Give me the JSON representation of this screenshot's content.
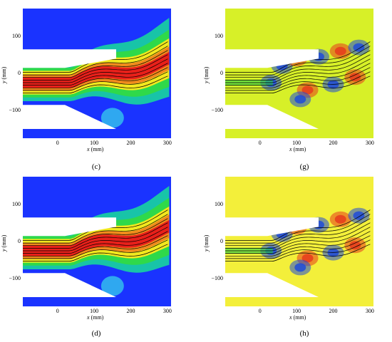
{
  "panels": [
    {
      "id": "c",
      "caption": "(c)",
      "variant": "vel",
      "bg": "#1a33ff"
    },
    {
      "id": "g",
      "caption": "(g)",
      "variant": "vort",
      "bg": "#d7f028"
    },
    {
      "id": "d",
      "caption": "(d)",
      "variant": "vel",
      "bg": "#1a33ff"
    },
    {
      "id": "h",
      "caption": "(h)",
      "variant": "vort",
      "bg": "#f3ef3a"
    }
  ],
  "axes": {
    "x_ticks": [
      "0",
      "100",
      "200",
      "300"
    ],
    "y_ticks": [
      "100",
      "0",
      "−100"
    ],
    "x_label_var": "x",
    "x_label_unit": " (mm)",
    "y_label_var": "y",
    "y_label_unit": " (mm)",
    "x_range": [
      -95,
      310
    ],
    "y_range": [
      -175,
      175
    ]
  },
  "colors": {
    "velocity_high": "#e8201a",
    "velocity_mid": "#f2e81e",
    "velocity_low": "#18c4a8",
    "velocity_bg": "#1a33ff",
    "vorticity_pos": "#e63a1c",
    "vorticity_neg": "#1f4bd8",
    "streamline": "#000000",
    "wall": "#ffffff"
  }
}
